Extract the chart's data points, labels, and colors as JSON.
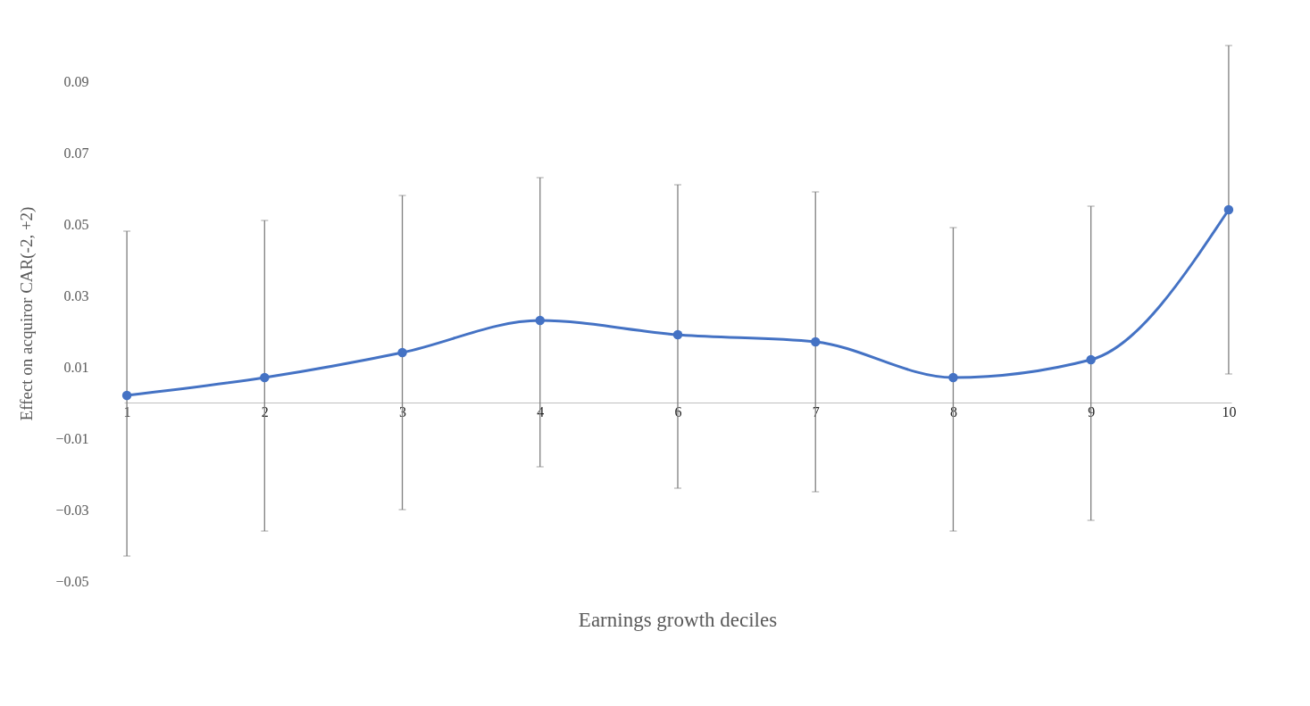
{
  "chart_data": {
    "type": "line",
    "xlabel": "Earnings growth deciles",
    "ylabel": "Effect on acquiror CAR(-2, +2)",
    "categories": [
      "1",
      "2",
      "3",
      "4",
      "6",
      "7",
      "8",
      "9",
      "10"
    ],
    "series": [
      {
        "color": "#4472c4",
        "values": [
          0.002,
          0.007,
          0.014,
          0.023,
          0.019,
          0.017,
          0.007,
          0.012,
          0.054
        ],
        "errors": [
          [
            -0.043,
            0.048
          ],
          [
            -0.036,
            0.051
          ],
          [
            -0.03,
            0.058
          ],
          [
            -0.018,
            0.063
          ],
          [
            -0.024,
            0.061
          ],
          [
            -0.025,
            0.059
          ],
          [
            -0.036,
            0.049
          ],
          [
            -0.033,
            0.055
          ],
          [
            0.008,
            0.1
          ]
        ]
      }
    ],
    "ylim": [
      -0.05,
      0.1
    ],
    "yticks": [
      -0.05,
      -0.03,
      -0.01,
      0.01,
      0.03,
      0.05,
      0.07,
      0.09
    ],
    "marker": "circle",
    "line_style": "solid"
  }
}
